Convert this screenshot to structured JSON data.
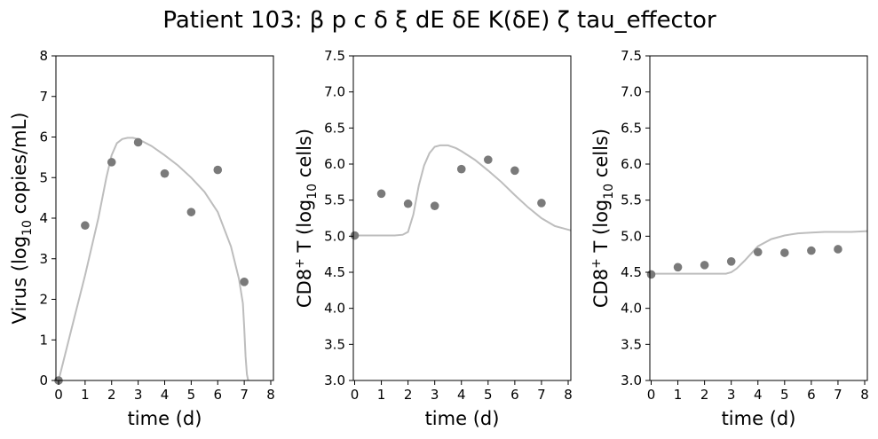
{
  "title": "Patient 103: β p c δ ξ dE δE K(δE) ζ tau_effector",
  "colors": {
    "points": "#7a7a7a",
    "curve": "#bdbdbd",
    "axes": "#000000"
  },
  "chart_data": [
    {
      "type": "scatter",
      "xlabel": "time (d)",
      "ylabel": {
        "main": "Virus (log",
        "sub": "10",
        "rest": " copies/mL)"
      },
      "xlim": [
        -0.1,
        8.1
      ],
      "ylim": [
        0,
        8
      ],
      "xticks": [
        0,
        1,
        2,
        3,
        4,
        5,
        6,
        7,
        8
      ],
      "yticks": [
        "0",
        "1",
        "2",
        "3",
        "4",
        "5",
        "6",
        "7",
        "8"
      ],
      "series": [
        {
          "kind": "points",
          "x": [
            0,
            1,
            2,
            3,
            4,
            5,
            6,
            7
          ],
          "y": [
            0.0,
            3.82,
            5.38,
            5.87,
            5.1,
            4.15,
            5.19,
            2.43
          ]
        },
        {
          "kind": "fit",
          "x": [
            0,
            0.5,
            1,
            1.5,
            1.8,
            2,
            2.2,
            2.4,
            2.6,
            2.8,
            3,
            3.5,
            4,
            4.5,
            5,
            5.5,
            6,
            6.5,
            6.8,
            6.95,
            7.0,
            7.05,
            7.1,
            7.15
          ],
          "y": [
            0,
            1.3,
            2.6,
            4.0,
            5.0,
            5.55,
            5.85,
            5.95,
            5.98,
            5.98,
            5.95,
            5.78,
            5.55,
            5.3,
            5.0,
            4.65,
            4.15,
            3.3,
            2.5,
            1.9,
            1.3,
            0.6,
            0.15,
            0
          ]
        }
      ]
    },
    {
      "type": "scatter",
      "xlabel": "time (d)",
      "ylabel": {
        "pre": "CD8",
        "sup": "+",
        "main": " T (log",
        "sub": "10",
        "rest": " cells)"
      },
      "xlim": [
        -0.05,
        8.1
      ],
      "ylim": [
        3.0,
        7.5
      ],
      "xticks": [
        0,
        1,
        2,
        3,
        4,
        5,
        6,
        7,
        8
      ],
      "yticks": [
        "3.0",
        "3.5",
        "4.0",
        "4.5",
        "5.0",
        "5.5",
        "6.0",
        "6.5",
        "7.0",
        "7.5"
      ],
      "series": [
        {
          "kind": "points",
          "x": [
            0,
            1,
            2,
            3,
            4,
            5,
            6,
            7
          ],
          "y": [
            5.01,
            5.59,
            5.45,
            5.42,
            5.93,
            6.06,
            5.91,
            5.46
          ]
        },
        {
          "kind": "fit",
          "x": [
            0,
            0.5,
            1,
            1.5,
            1.8,
            2,
            2.2,
            2.4,
            2.6,
            2.8,
            3,
            3.2,
            3.5,
            3.8,
            4,
            4.5,
            5,
            5.5,
            6,
            6.5,
            7,
            7.5,
            8.1
          ],
          "y": [
            5.01,
            5.01,
            5.01,
            5.01,
            5.02,
            5.06,
            5.3,
            5.7,
            5.98,
            6.15,
            6.24,
            6.26,
            6.26,
            6.22,
            6.18,
            6.06,
            5.91,
            5.75,
            5.57,
            5.4,
            5.25,
            5.14,
            5.08
          ]
        }
      ]
    },
    {
      "type": "scatter",
      "xlabel": "time (d)",
      "ylabel": {
        "pre": "CD8",
        "sup": "+",
        "main": " T (log",
        "sub": "10",
        "rest": " cells)"
      },
      "xlim": [
        -0.05,
        8.1
      ],
      "ylim": [
        3.0,
        7.5
      ],
      "xticks": [
        0,
        1,
        2,
        3,
        4,
        5,
        6,
        7,
        8
      ],
      "yticks": [
        "3.0",
        "3.5",
        "4.0",
        "4.5",
        "5.0",
        "5.5",
        "6.0",
        "6.5",
        "7.0",
        "7.5"
      ],
      "series": [
        {
          "kind": "points",
          "x": [
            0,
            1,
            2,
            3,
            4,
            5,
            6,
            7
          ],
          "y": [
            4.47,
            4.57,
            4.6,
            4.65,
            4.78,
            4.77,
            4.8,
            4.82
          ]
        },
        {
          "kind": "fit",
          "x": [
            0,
            1,
            2,
            2.5,
            2.8,
            3,
            3.2,
            3.5,
            3.8,
            4,
            4.5,
            5,
            5.5,
            6,
            6.5,
            7,
            7.5,
            8.1
          ],
          "y": [
            4.48,
            4.48,
            4.48,
            4.48,
            4.48,
            4.5,
            4.55,
            4.66,
            4.78,
            4.86,
            4.96,
            5.01,
            5.04,
            5.05,
            5.06,
            5.06,
            5.06,
            5.07
          ]
        }
      ]
    }
  ]
}
